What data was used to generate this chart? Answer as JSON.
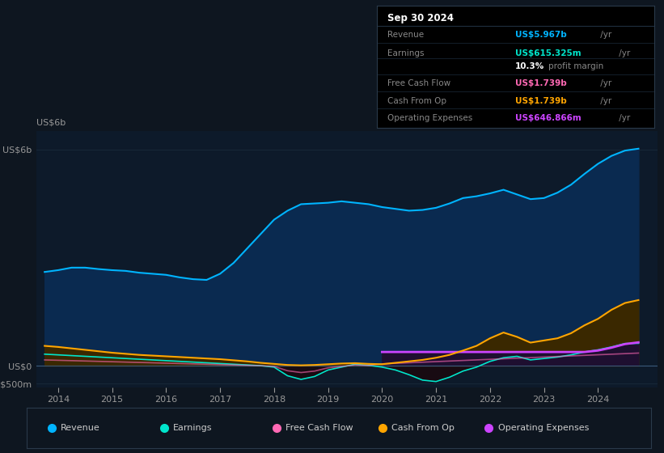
{
  "bg_color": "#0e1620",
  "plot_bg_color": "#0d1a2a",
  "grid_color": "#1a2a3a",
  "title_box": {
    "date": "Sep 30 2024",
    "rows": [
      {
        "label": "Revenue",
        "value": "US$5.967b",
        "value_color": "#00b4ff"
      },
      {
        "label": "Earnings",
        "value": "US$615.325m",
        "value_color": "#00e5cc"
      },
      {
        "label": "",
        "pct": "10.3%",
        "margin_text": " profit margin"
      },
      {
        "label": "Free Cash Flow",
        "value": "US$1.739b",
        "value_color": "#ff69b4"
      },
      {
        "label": "Cash From Op",
        "value": "US$1.739b",
        "value_color": "#ffa500"
      },
      {
        "label": "Operating Expenses",
        "value": "US$646.866m",
        "value_color": "#cc44ff"
      }
    ]
  },
  "years": [
    2013.75,
    2014.0,
    2014.25,
    2014.5,
    2014.75,
    2015.0,
    2015.25,
    2015.5,
    2015.75,
    2016.0,
    2016.25,
    2016.5,
    2016.75,
    2017.0,
    2017.25,
    2017.5,
    2017.75,
    2018.0,
    2018.25,
    2018.5,
    2018.75,
    2019.0,
    2019.25,
    2019.5,
    2019.75,
    2020.0,
    2020.25,
    2020.5,
    2020.75,
    2021.0,
    2021.25,
    2021.5,
    2021.75,
    2022.0,
    2022.25,
    2022.5,
    2022.75,
    2023.0,
    2023.25,
    2023.5,
    2023.75,
    2024.0,
    2024.25,
    2024.5,
    2024.75
  ],
  "revenue": [
    2.6,
    2.65,
    2.72,
    2.72,
    2.68,
    2.65,
    2.63,
    2.58,
    2.55,
    2.52,
    2.45,
    2.4,
    2.38,
    2.55,
    2.85,
    3.25,
    3.65,
    4.05,
    4.3,
    4.48,
    4.5,
    4.52,
    4.56,
    4.52,
    4.48,
    4.4,
    4.35,
    4.3,
    4.32,
    4.38,
    4.5,
    4.65,
    4.7,
    4.78,
    4.88,
    4.75,
    4.62,
    4.65,
    4.8,
    5.02,
    5.32,
    5.6,
    5.82,
    5.967,
    6.02
  ],
  "earnings": [
    0.32,
    0.3,
    0.28,
    0.26,
    0.24,
    0.22,
    0.2,
    0.18,
    0.16,
    0.14,
    0.12,
    0.1,
    0.08,
    0.06,
    0.04,
    0.02,
    0.0,
    -0.04,
    -0.28,
    -0.38,
    -0.3,
    -0.12,
    -0.04,
    0.04,
    0.01,
    -0.04,
    -0.12,
    -0.25,
    -0.4,
    -0.44,
    -0.32,
    -0.15,
    -0.04,
    0.12,
    0.22,
    0.26,
    0.16,
    0.2,
    0.24,
    0.3,
    0.38,
    0.44,
    0.52,
    0.615,
    0.62
  ],
  "cash_from_op": [
    0.55,
    0.52,
    0.48,
    0.44,
    0.4,
    0.36,
    0.33,
    0.3,
    0.28,
    0.26,
    0.24,
    0.22,
    0.2,
    0.18,
    0.15,
    0.12,
    0.08,
    0.05,
    0.02,
    0.01,
    0.02,
    0.04,
    0.06,
    0.07,
    0.05,
    0.04,
    0.08,
    0.12,
    0.16,
    0.22,
    0.3,
    0.42,
    0.55,
    0.76,
    0.92,
    0.8,
    0.64,
    0.7,
    0.76,
    0.9,
    1.12,
    1.3,
    1.55,
    1.739,
    1.82
  ],
  "operating_expenses": [
    null,
    null,
    null,
    null,
    null,
    null,
    null,
    null,
    null,
    null,
    null,
    null,
    null,
    null,
    null,
    null,
    null,
    null,
    null,
    null,
    null,
    null,
    null,
    null,
    null,
    0.38,
    0.38,
    0.38,
    0.38,
    0.38,
    0.38,
    0.38,
    0.38,
    0.38,
    0.38,
    0.38,
    0.38,
    0.38,
    0.38,
    0.38,
    0.38,
    0.42,
    0.5,
    0.6,
    0.647
  ],
  "revenue_color": "#00b4ff",
  "revenue_fill": "#0a2a50",
  "earnings_color": "#00e5cc",
  "earnings_fill_pos": "#0d3535",
  "earnings_fill_neg": "#1a0a10",
  "free_cash_flow_color": "#ff69b4",
  "cash_from_op_color": "#ffa500",
  "cash_from_op_fill": "#3a2800",
  "op_expenses_color": "#cc44ff",
  "op_expenses_fill": "#1e0f30",
  "ylim": [
    -0.6,
    6.5
  ],
  "xlim": [
    2013.6,
    2025.1
  ],
  "ytick_vals": [
    -0.5,
    0.0,
    6.0
  ],
  "ytick_labels": [
    "-US$500m",
    "US$0",
    "US$6b"
  ],
  "xticks": [
    2014,
    2015,
    2016,
    2017,
    2018,
    2019,
    2020,
    2021,
    2022,
    2023,
    2024
  ],
  "legend_items": [
    {
      "label": "Revenue",
      "color": "#00b4ff"
    },
    {
      "label": "Earnings",
      "color": "#00e5cc"
    },
    {
      "label": "Free Cash Flow",
      "color": "#ff69b4"
    },
    {
      "label": "Cash From Op",
      "color": "#ffa500"
    },
    {
      "label": "Operating Expenses",
      "color": "#cc44ff"
    }
  ]
}
